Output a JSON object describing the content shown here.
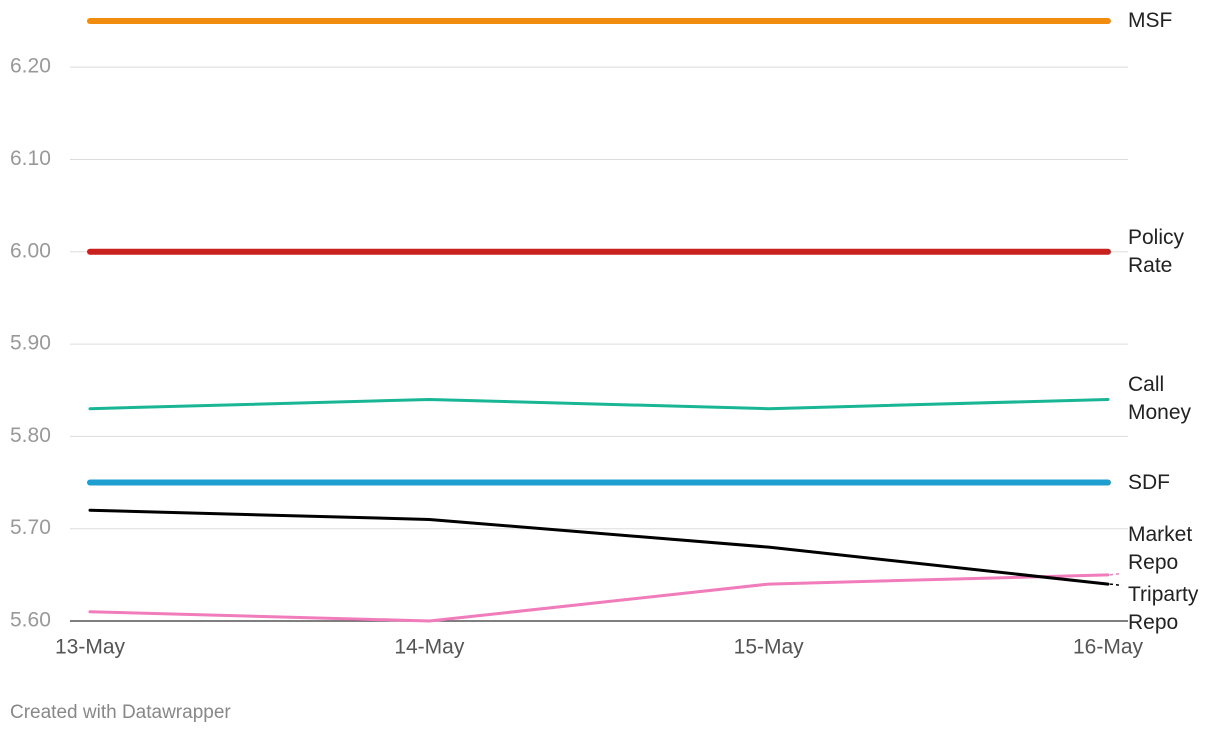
{
  "chart_data": {
    "type": "line",
    "categories": [
      "13-May",
      "14-May",
      "15-May",
      "16-May"
    ],
    "series": [
      {
        "name": "MSF",
        "color": "#f28c0f",
        "width": 6,
        "values": [
          6.25,
          6.25,
          6.25,
          6.25
        ]
      },
      {
        "name": "Policy Rate",
        "color": "#c9211e",
        "width": 6,
        "values": [
          6.0,
          6.0,
          6.0,
          6.0
        ]
      },
      {
        "name": "Call Money",
        "color": "#18b694",
        "width": 3,
        "values": [
          5.83,
          5.84,
          5.83,
          5.84
        ]
      },
      {
        "name": "SDF",
        "color": "#1f9fd0",
        "width": 6,
        "values": [
          5.75,
          5.75,
          5.75,
          5.75
        ]
      },
      {
        "name": "Market Repo",
        "color": "#f07cbc",
        "width": 3,
        "values": [
          5.61,
          5.6,
          5.64,
          5.65
        ]
      },
      {
        "name": "Triparty Repo",
        "color": "#000000",
        "width": 3,
        "values": [
          5.72,
          5.71,
          5.68,
          5.64
        ]
      }
    ],
    "ylim": [
      5.6,
      6.25
    ],
    "yticks": [
      {
        "value": 5.6,
        "label": "5.60"
      },
      {
        "value": 5.7,
        "label": "5.70"
      },
      {
        "value": 5.8,
        "label": "5.80"
      },
      {
        "value": 5.9,
        "label": "5.90"
      },
      {
        "value": 6.0,
        "label": "6.00"
      },
      {
        "value": 6.1,
        "label": "6.10"
      },
      {
        "value": 6.2,
        "label": "6.20"
      }
    ],
    "grid": true,
    "footer": "Created with Datawrapper"
  }
}
